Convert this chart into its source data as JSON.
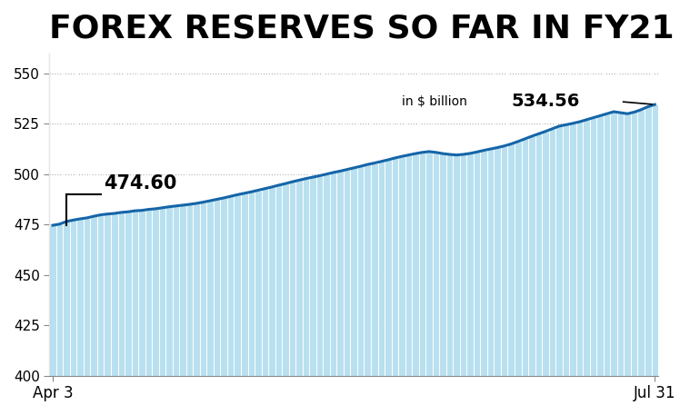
{
  "title": "FOREX RESERVES SO FAR IN FY21",
  "xlabel_left": "Apr 3",
  "xlabel_right": "Jul 31",
  "ylim": [
    400,
    560
  ],
  "yticks": [
    400,
    425,
    450,
    475,
    500,
    525,
    550
  ],
  "first_value": 474.6,
  "last_value": 534.56,
  "bar_color": "#b8e0f0",
  "bar_edge_color": "#ffffff",
  "line_color": "#1565a8",
  "background_color": "#ffffff",
  "grid_color": "#999999",
  "title_fontsize": 26,
  "values": [
    474.6,
    475.2,
    476.5,
    477.2,
    477.8,
    478.3,
    479.1,
    479.8,
    480.2,
    480.5,
    481.0,
    481.3,
    481.8,
    482.0,
    482.5,
    482.8,
    483.3,
    483.8,
    484.2,
    484.6,
    485.0,
    485.5,
    486.1,
    486.8,
    487.5,
    488.2,
    489.0,
    489.8,
    490.5,
    491.2,
    492.0,
    492.8,
    493.6,
    494.5,
    495.3,
    496.2,
    497.0,
    497.8,
    498.5,
    499.2,
    500.0,
    500.8,
    501.5,
    502.3,
    503.1,
    503.9,
    504.8,
    505.5,
    506.3,
    507.1,
    508.0,
    508.8,
    509.5,
    510.2,
    510.8,
    511.2,
    510.8,
    510.2,
    509.8,
    509.5,
    509.8,
    510.3,
    511.0,
    511.8,
    512.5,
    513.2,
    514.0,
    515.0,
    516.2,
    517.5,
    518.8,
    520.0,
    521.2,
    522.5,
    523.8,
    524.5,
    525.2,
    526.0,
    527.0,
    528.0,
    529.0,
    530.0,
    531.0,
    530.5,
    530.0,
    530.8,
    532.0,
    533.5,
    534.56
  ]
}
